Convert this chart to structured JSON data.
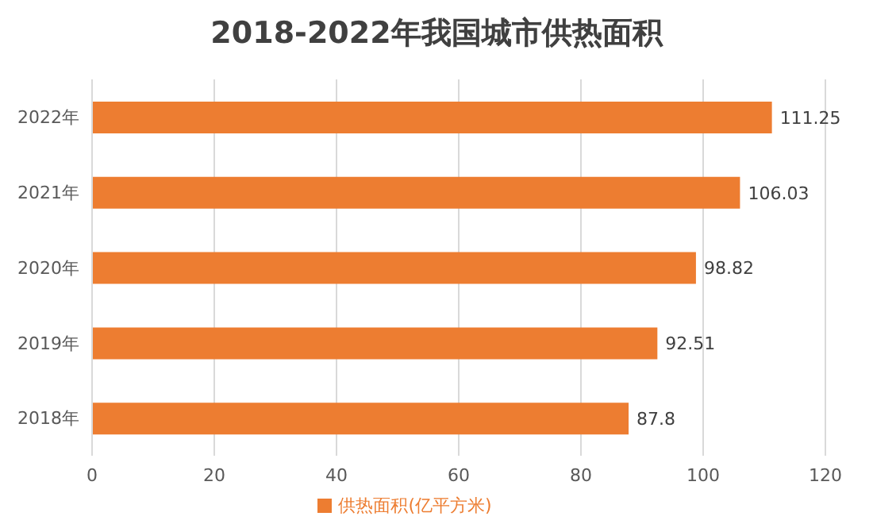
{
  "chart_data": {
    "type": "bar",
    "orientation": "horizontal",
    "title": "2018-2022年我国城市供热面积",
    "categories": [
      "2022年",
      "2021年",
      "2020年",
      "2019年",
      "2018年"
    ],
    "series": [
      {
        "name": "供热面积(亿平方米)",
        "color": "#ed7d31",
        "values": [
          111.25,
          106.03,
          98.82,
          92.51,
          87.8
        ]
      }
    ],
    "xlim": [
      0,
      120
    ],
    "xticks": [
      0,
      20,
      40,
      60,
      80,
      100,
      120
    ],
    "grid": "x",
    "legend": "bottom",
    "data_labels": true
  }
}
